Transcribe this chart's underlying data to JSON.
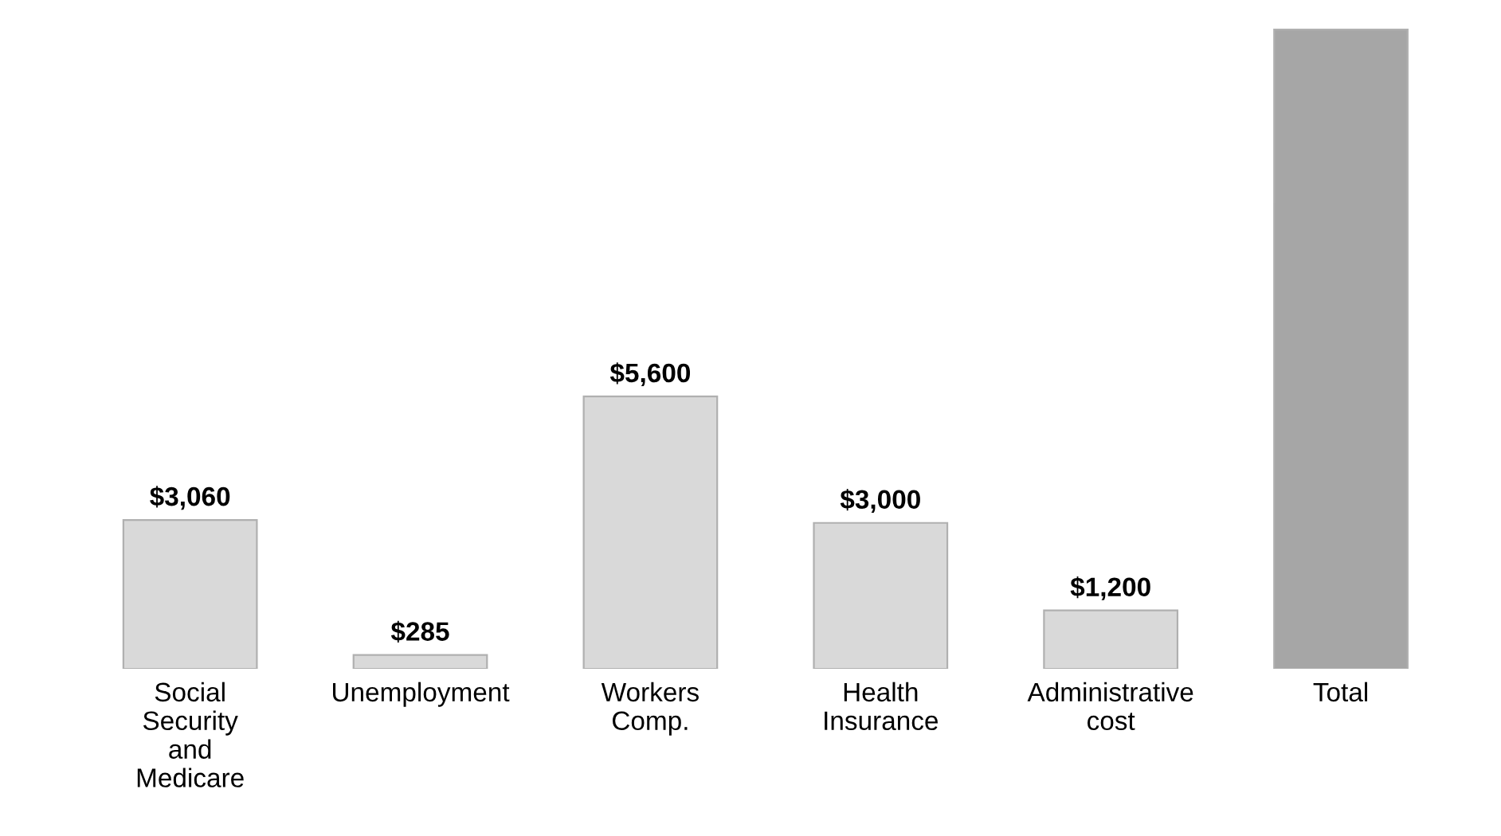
{
  "chart_data": {
    "type": "bar",
    "categories": [
      "Social\nSecurity\nand\nMedicare",
      "Unemployment",
      "Workers\nComp.",
      "Health\nInsurance",
      "Administrative\ncost",
      "Total"
    ],
    "values": [
      3060,
      285,
      5600,
      3000,
      1200,
      13145
    ],
    "colors": [
      "#d9d9d9",
      "#d9d9d9",
      "#d9d9d9",
      "#d9d9d9",
      "#d9d9d9",
      "#a6a6a6"
    ],
    "value_labels": [
      "$3,060",
      "$285",
      "$5,600",
      "$3,000",
      "$1,200",
      null
    ],
    "grid": false,
    "legend": false
  }
}
